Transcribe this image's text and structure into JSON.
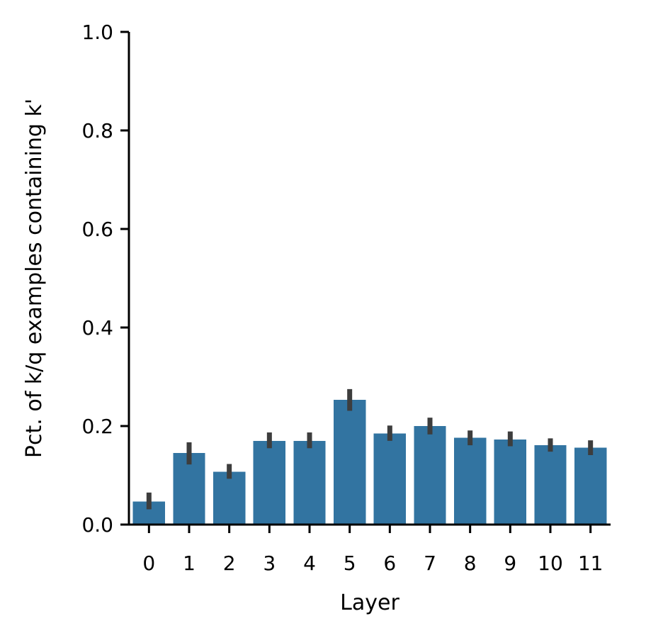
{
  "chart_data": {
    "type": "bar",
    "title": "",
    "xlabel": "Layer",
    "ylabel": "Pct. of k/q examples containing k'",
    "categories": [
      "0",
      "1",
      "2",
      "3",
      "4",
      "5",
      "6",
      "7",
      "8",
      "9",
      "10",
      "11"
    ],
    "values": [
      0.047,
      0.145,
      0.107,
      0.17,
      0.17,
      0.253,
      0.185,
      0.2,
      0.176,
      0.173,
      0.161,
      0.156
    ],
    "error_low": [
      0.031,
      0.122,
      0.093,
      0.155,
      0.155,
      0.231,
      0.17,
      0.183,
      0.161,
      0.159,
      0.148,
      0.141
    ],
    "error_high": [
      0.065,
      0.167,
      0.123,
      0.187,
      0.187,
      0.275,
      0.201,
      0.217,
      0.191,
      0.189,
      0.175,
      0.171
    ],
    "ylim": [
      0,
      1
    ],
    "yticks": [
      "0.0",
      "0.2",
      "0.4",
      "0.6",
      "0.8",
      "1.0"
    ],
    "grid": false,
    "legend": "none",
    "colors": {
      "bar": "#3274a1",
      "error_bar": "#3d3d3d",
      "axis": "#000000"
    }
  }
}
